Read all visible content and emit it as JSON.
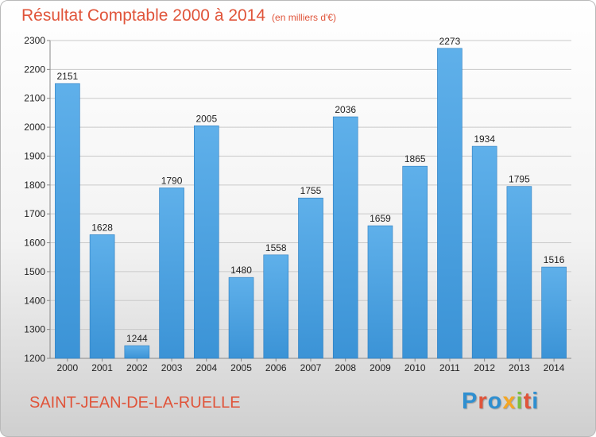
{
  "header": {
    "title": "Résultat Comptable 2000 à 2014",
    "subtitle": "(en milliers d'€)"
  },
  "footer": {
    "commune": "SAINT-JEAN-DE-LA-RUELLE",
    "brand": {
      "letters": [
        "P",
        "r",
        "o",
        "x",
        "i",
        "t",
        "i"
      ],
      "colors": [
        "#2f8fd0",
        "#e0543a",
        "#2f8fd0",
        "#f4a623",
        "#7cbf3f",
        "#e0543a",
        "#2f8fd0"
      ]
    }
  },
  "colors": {
    "bar": "#3b93d6",
    "bar_light": "#5fb0ea",
    "accent": "#e0543a"
  },
  "chart_data": {
    "type": "bar",
    "categories": [
      "2000",
      "2001",
      "2002",
      "2003",
      "2004",
      "2005",
      "2006",
      "2007",
      "2008",
      "2009",
      "2010",
      "2011",
      "2012",
      "2013",
      "2014"
    ],
    "values": [
      2151,
      1628,
      1244,
      1790,
      2005,
      1480,
      1558,
      1755,
      2036,
      1659,
      1865,
      2273,
      1934,
      1795,
      1516
    ],
    "title": "Résultat Comptable 2000 à 2014",
    "xlabel": "",
    "ylabel": "",
    "ylim": [
      1200,
      2300
    ],
    "yticks": [
      1200,
      1300,
      1400,
      1500,
      1600,
      1700,
      1800,
      1900,
      2000,
      2100,
      2200,
      2300
    ],
    "grid": true,
    "data_labels": true
  }
}
